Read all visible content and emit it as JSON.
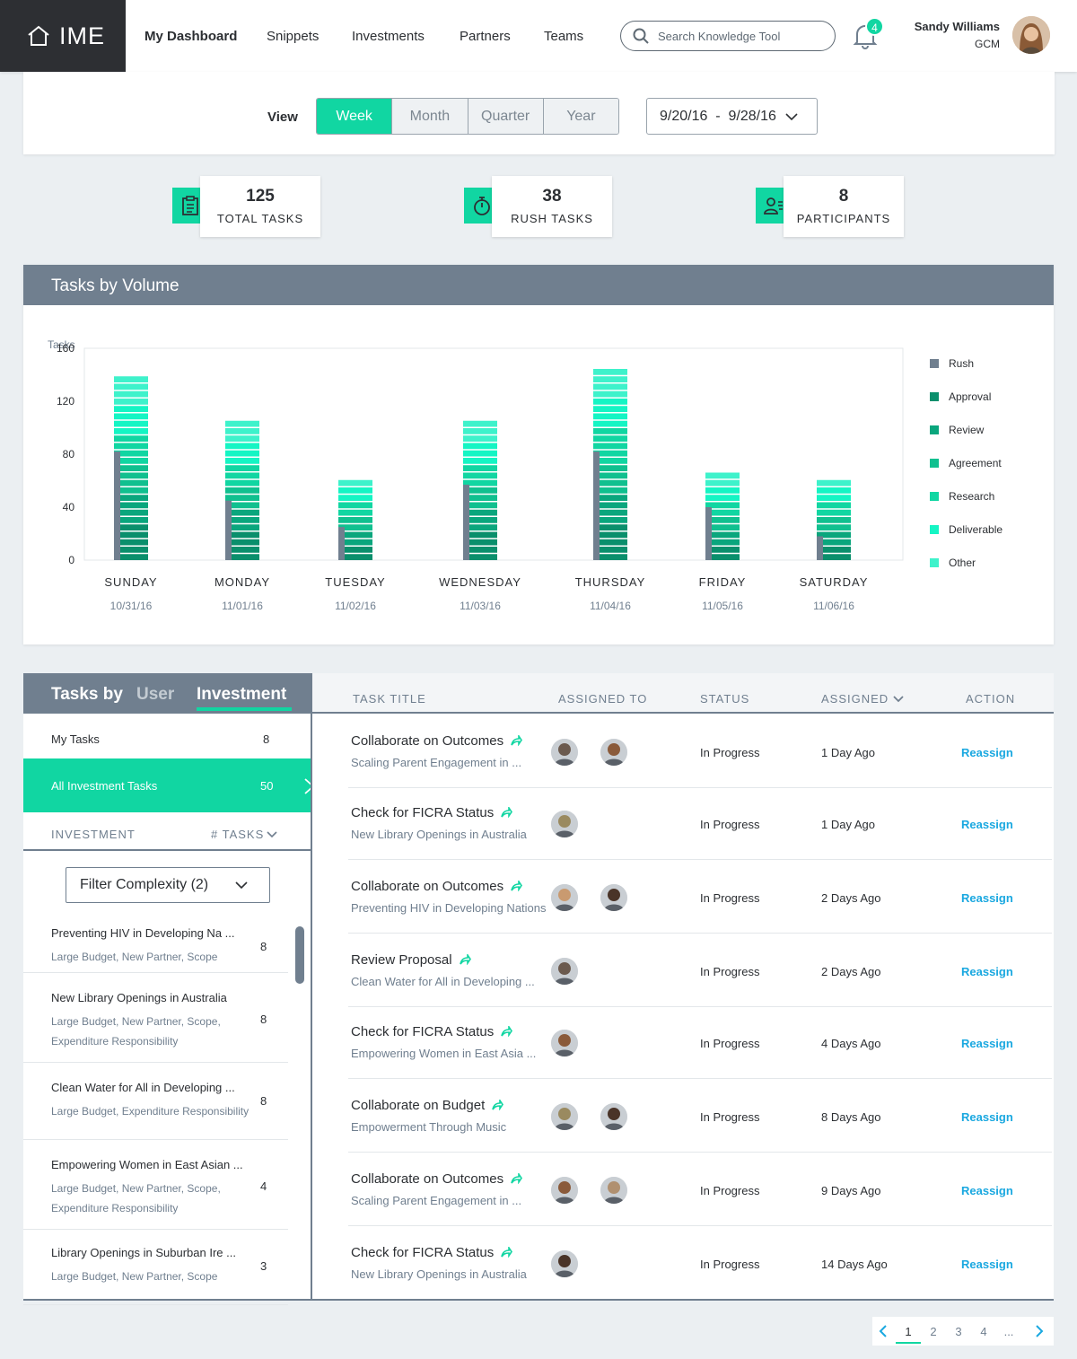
{
  "nav": {
    "logo": "IME",
    "links": [
      "My Dashboard",
      "Snippets",
      "Investments",
      "Partners",
      "Teams"
    ],
    "search_placeholder": "Search Knowledge Tool",
    "notification_count": "4",
    "user_name": "Sandy Williams",
    "user_role": "GCM"
  },
  "view": {
    "label": "View",
    "options": [
      "Week",
      "Month",
      "Quarter",
      "Year"
    ],
    "selected": "Week",
    "date_range": "9/20/16  -  9/28/16"
  },
  "stats": [
    {
      "value": "125",
      "label": "TOTAL TASKS",
      "icon": "clipboard-icon"
    },
    {
      "value": "38",
      "label": "RUSH TASKS",
      "icon": "stopwatch-icon"
    },
    {
      "value": "8",
      "label": "PARTICIPANTS",
      "icon": "participants-icon"
    }
  ],
  "chart_panel_title": "Tasks by Volume",
  "chart_data": {
    "type": "bar",
    "stacked": true,
    "title": "Tasks by Volume",
    "ylabel": "Tasks",
    "ylim": [
      0,
      160
    ],
    "yticks": [
      0,
      40,
      80,
      120,
      160
    ],
    "categories": [
      "SUNDAY",
      "MONDAY",
      "TUESDAY",
      "WEDNESDAY",
      "THURSDAY",
      "FRIDAY",
      "SATURDAY"
    ],
    "dates": [
      "10/31/16",
      "11/01/16",
      "11/02/16",
      "11/03/16",
      "11/04/16",
      "11/05/16",
      "11/06/16"
    ],
    "totals": [
      140,
      108,
      63,
      108,
      145,
      69,
      63
    ],
    "rush": [
      82,
      45,
      25,
      57,
      82,
      40,
      18
    ],
    "series": [
      {
        "name": "Rush",
        "color": "#707f8f"
      },
      {
        "name": "Approval",
        "color": "#0a8f6c"
      },
      {
        "name": "Review",
        "color": "#0aa67d"
      },
      {
        "name": "Agreement",
        "color": "#10c08f"
      },
      {
        "name": "Research",
        "color": "#11d6a2"
      },
      {
        "name": "Deliverable",
        "color": "#15f5c4"
      },
      {
        "name": "Other",
        "color": "#3ef2cb"
      }
    ],
    "legend_position": "right",
    "grid": false
  },
  "tasks_section": {
    "title": "Tasks by",
    "tabs": [
      "User",
      "Investment"
    ],
    "active_tab": "Investment",
    "my_tasks_label": "My Tasks",
    "my_tasks_count": "8",
    "all_label": "All Investment Tasks",
    "all_count": "50",
    "col_investment": "INVESTMENT",
    "col_tasks": "# TASKS",
    "filter_label": "Filter Complexity (2)",
    "investments": [
      {
        "title": "Preventing HIV in Developing Na ...",
        "tags": [
          "Large Budget, New Partner, Scope"
        ],
        "count": "8"
      },
      {
        "title": "New Library Openings in Australia",
        "tags": [
          "Large Budget, New Partner, Scope,",
          "Expenditure Responsibility"
        ],
        "count": "8"
      },
      {
        "title": "Clean Water for All in Developing ...",
        "tags": [
          "Large Budget, Expenditure Responsibility"
        ],
        "count": "8"
      },
      {
        "title": "Empowering Women in East Asian ...",
        "tags": [
          "Large Budget, New Partner, Scope,",
          "Expenditure Responsibility"
        ],
        "count": "4"
      },
      {
        "title": "Library Openings in Suburban Ire ...",
        "tags": [
          "Large Budget, New Partner, Scope"
        ],
        "count": "3"
      }
    ]
  },
  "table": {
    "headers": [
      "TASK TITLE",
      "ASSIGNED TO",
      "STATUS",
      "ASSIGNED",
      "ACTION"
    ],
    "rows": [
      {
        "title": "Collaborate on Outcomes",
        "sub": "Scaling Parent Engagement in ...",
        "avatars": [
          "#6b5a4e",
          "#8a5a3a"
        ],
        "status": "In Progress",
        "assigned": "1 Day Ago",
        "action": "Reassign"
      },
      {
        "title": "Check for FICRA Status",
        "sub": "New Library Openings in Australia",
        "avatars": [
          "#9a8a60"
        ],
        "status": "In Progress",
        "assigned": "1 Day Ago",
        "action": "Reassign"
      },
      {
        "title": "Collaborate on Outcomes",
        "sub": "Preventing HIV in Developing Nations",
        "avatars": [
          "#c99a70",
          "#4a3428"
        ],
        "status": "In Progress",
        "assigned": "2 Days Ago",
        "action": "Reassign"
      },
      {
        "title": "Review Proposal",
        "sub": "Clean Water for All in Developing ...",
        "avatars": [
          "#6b5a4e"
        ],
        "status": "In Progress",
        "assigned": "2 Days Ago",
        "action": "Reassign"
      },
      {
        "title": "Check for FICRA Status",
        "sub": "Empowering Women in East Asia ...",
        "avatars": [
          "#8a5a3a"
        ],
        "status": "In Progress",
        "assigned": "4 Days Ago",
        "action": "Reassign"
      },
      {
        "title": "Collaborate on Budget",
        "sub": "Empowerment Through Music",
        "avatars": [
          "#9a8a60",
          "#4a3428"
        ],
        "status": "In Progress",
        "assigned": "8 Days Ago",
        "action": "Reassign"
      },
      {
        "title": "Collaborate on Outcomes",
        "sub": "Scaling Parent Engagement in ...",
        "avatars": [
          "#8a5a3a",
          "#b09070"
        ],
        "status": "In Progress",
        "assigned": "9 Days Ago",
        "action": "Reassign"
      },
      {
        "title": "Check for FICRA Status",
        "sub": "New Library Openings in Australia",
        "avatars": [
          "#4a3428"
        ],
        "status": "In Progress",
        "assigned": "14 Days Ago",
        "action": "Reassign"
      }
    ]
  },
  "pager": {
    "pages": [
      "1",
      "2",
      "3",
      "4",
      "..."
    ],
    "current": "1"
  }
}
